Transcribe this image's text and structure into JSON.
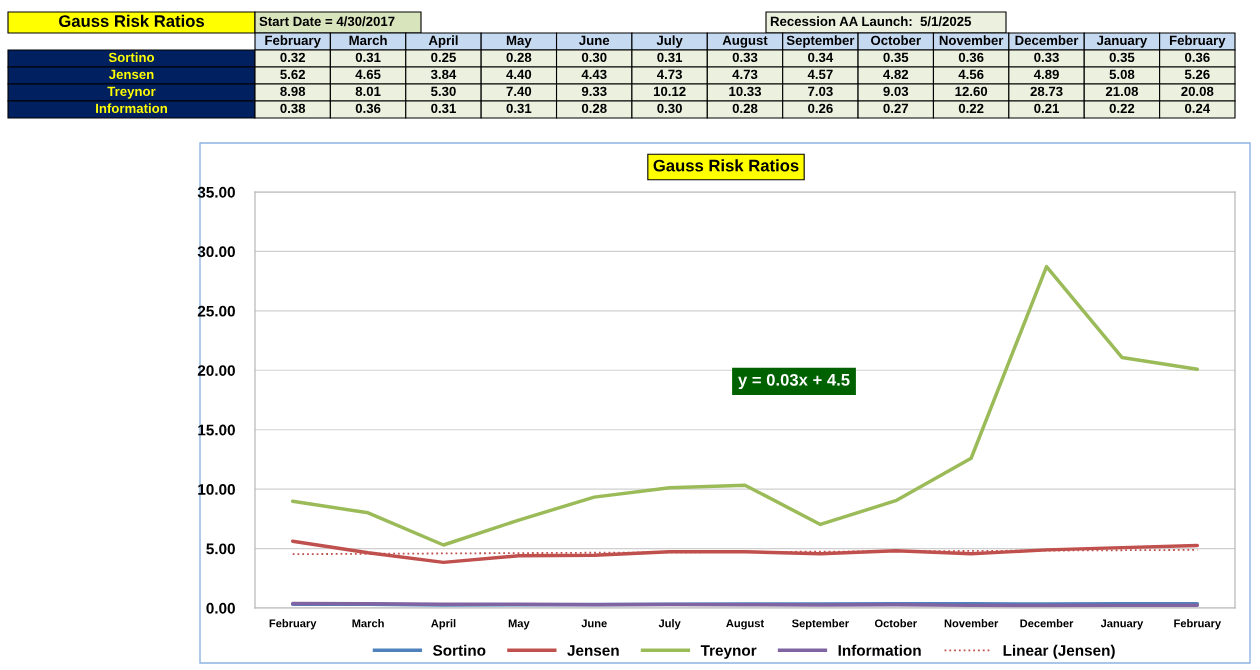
{
  "chart_data": {
    "type": "line",
    "title": "Gauss Risk Ratios",
    "annotations": [
      "Start Date = 4/30/2017",
      "Recession AA Launch:  5/1/2025",
      "y = 0.03x + 4.5"
    ],
    "categories": [
      "February",
      "March",
      "April",
      "May",
      "June",
      "July",
      "August",
      "September",
      "October",
      "November",
      "December",
      "January",
      "February"
    ],
    "series": [
      {
        "name": "Sortino",
        "color": "#4f81bd",
        "values": [
          0.32,
          0.31,
          0.25,
          0.28,
          0.3,
          0.31,
          0.33,
          0.34,
          0.35,
          0.36,
          0.33,
          0.35,
          0.36
        ],
        "value_labels": [
          "0.32",
          "0.31",
          "0.25",
          "0.28",
          "0.30",
          "0.31",
          "0.33",
          "0.34",
          "0.35",
          "0.36",
          "0.33",
          "0.35",
          "0.36"
        ]
      },
      {
        "name": "Jensen",
        "color": "#c0504d",
        "values": [
          5.62,
          4.65,
          3.84,
          4.4,
          4.43,
          4.73,
          4.73,
          4.57,
          4.82,
          4.56,
          4.89,
          5.08,
          5.26
        ],
        "value_labels": [
          "5.62",
          "4.65",
          "3.84",
          "4.40",
          "4.43",
          "4.73",
          "4.73",
          "4.57",
          "4.82",
          "4.56",
          "4.89",
          "5.08",
          "5.26"
        ]
      },
      {
        "name": "Treynor",
        "color": "#9bbb59",
        "values": [
          8.98,
          8.01,
          5.3,
          7.4,
          9.33,
          10.12,
          10.33,
          7.03,
          9.03,
          12.6,
          28.73,
          21.08,
          20.08
        ],
        "value_labels": [
          "8.98",
          "8.01",
          "5.30",
          "7.40",
          "9.33",
          "10.12",
          "10.33",
          "7.03",
          "9.03",
          "12.60",
          "28.73",
          "21.08",
          "20.08"
        ]
      },
      {
        "name": "Information",
        "color": "#8064a2",
        "values": [
          0.38,
          0.36,
          0.31,
          0.31,
          0.28,
          0.3,
          0.28,
          0.26,
          0.27,
          0.22,
          0.21,
          0.22,
          0.24
        ],
        "value_labels": [
          "0.38",
          "0.36",
          "0.31",
          "0.31",
          "0.28",
          "0.30",
          "0.28",
          "0.26",
          "0.27",
          "0.22",
          "0.21",
          "0.22",
          "0.24"
        ]
      },
      {
        "name": "Linear (Jensen)",
        "color": "#c0504d",
        "type": "line",
        "line_style": "dotted",
        "values": [
          4.53,
          4.56,
          4.59,
          4.62,
          4.65,
          4.68,
          4.71,
          4.74,
          4.77,
          4.8,
          4.83,
          4.86,
          4.89
        ]
      }
    ],
    "ylim": [
      0,
      35
    ],
    "yticks": [
      {
        "value": 0,
        "label": "0.00"
      },
      {
        "value": 5,
        "label": "5.00"
      },
      {
        "value": 10,
        "label": "10.00"
      },
      {
        "value": 15,
        "label": "15.00"
      },
      {
        "value": 20,
        "label": "20.00"
      },
      {
        "value": 25,
        "label": "25.00"
      },
      {
        "value": 30,
        "label": "30.00"
      },
      {
        "value": 35,
        "label": "35.00"
      }
    ],
    "grid": "y",
    "legend": "bottom",
    "marker": "none",
    "line_style": "solid"
  }
}
